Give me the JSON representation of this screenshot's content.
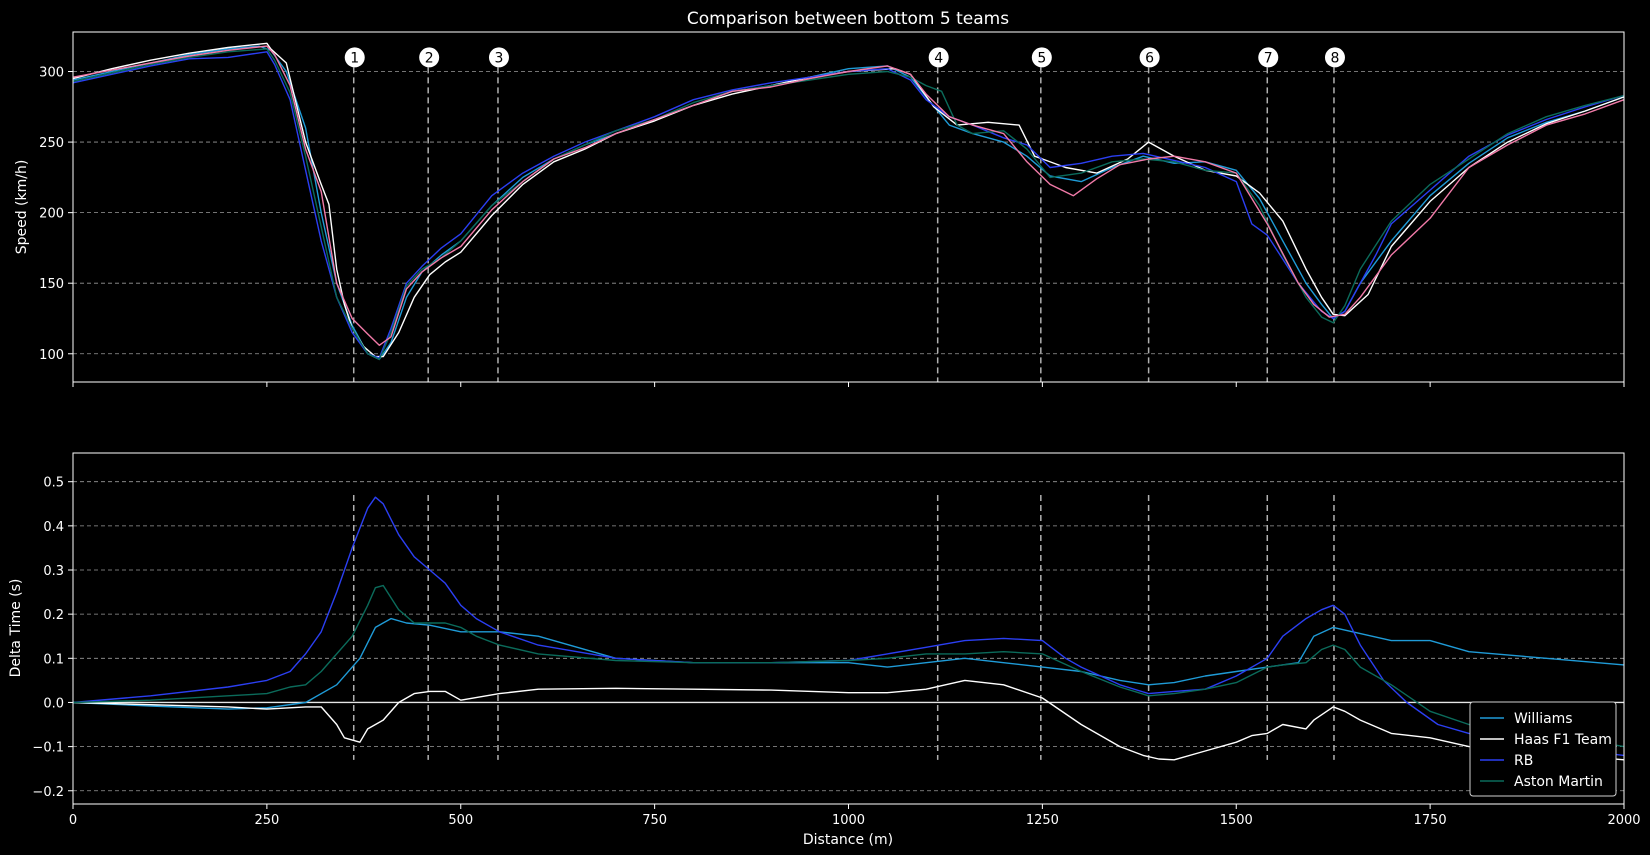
{
  "chart_data": [
    {
      "type": "line",
      "title": "Comparison between bottom 5 teams",
      "xlabel": "",
      "ylabel": "Speed (km/h)",
      "xlim": [
        0,
        2000
      ],
      "ylim": [
        80,
        328
      ],
      "xticks": [
        0,
        250,
        500,
        750,
        1000,
        1250,
        1500,
        1750,
        2000
      ],
      "yticks": [
        100,
        150,
        200,
        250,
        300
      ],
      "grid": "y-dashed",
      "corners": [
        {
          "label": "1",
          "x": 362
        },
        {
          "label": "2",
          "x": 458
        },
        {
          "label": "3",
          "x": 548
        },
        {
          "label": "4",
          "x": 1115
        },
        {
          "label": "5",
          "x": 1248
        },
        {
          "label": "6",
          "x": 1387
        },
        {
          "label": "7",
          "x": 1540
        },
        {
          "label": "8",
          "x": 1626
        }
      ],
      "series": [
        {
          "color": "#1f9bd7",
          "x": [
            0,
            50,
            100,
            150,
            200,
            240,
            255,
            275,
            300,
            320,
            340,
            360,
            380,
            395,
            410,
            430,
            450,
            475,
            500,
            540,
            580,
            620,
            660,
            700,
            750,
            800,
            850,
            900,
            950,
            1000,
            1050,
            1080,
            1100,
            1130,
            1160,
            1200,
            1230,
            1260,
            1300,
            1340,
            1380,
            1420,
            1460,
            1500,
            1530,
            1560,
            1590,
            1610,
            1625,
            1640,
            1660,
            1700,
            1750,
            1800,
            1850,
            1900,
            1950,
            2000
          ],
          "y": [
            294,
            300,
            306,
            312,
            316,
            318,
            315,
            300,
            260,
            200,
            150,
            120,
            100,
            96,
            108,
            140,
            158,
            170,
            180,
            205,
            225,
            238,
            248,
            256,
            266,
            276,
            286,
            290,
            296,
            302,
            304,
            296,
            282,
            262,
            256,
            250,
            240,
            226,
            222,
            232,
            240,
            235,
            236,
            230,
            210,
            180,
            150,
            135,
            125,
            130,
            150,
            180,
            212,
            235,
            253,
            264,
            272,
            282
          ]
        },
        {
          "color": "#ffffff",
          "x": [
            0,
            50,
            100,
            150,
            200,
            250,
            255,
            275,
            300,
            320,
            330,
            340,
            350,
            360,
            375,
            390,
            400,
            420,
            440,
            460,
            480,
            500,
            540,
            580,
            620,
            660,
            700,
            750,
            800,
            850,
            900,
            950,
            1000,
            1060,
            1080,
            1110,
            1140,
            1180,
            1220,
            1240,
            1250,
            1280,
            1320,
            1360,
            1387,
            1420,
            1460,
            1500,
            1530,
            1560,
            1590,
            1610,
            1625,
            1640,
            1670,
            1700,
            1750,
            1800,
            1850,
            1900,
            1950,
            2000
          ],
          "y": [
            295,
            302,
            308,
            313,
            317,
            320,
            316,
            306,
            250,
            220,
            206,
            160,
            135,
            118,
            105,
            98,
            98,
            115,
            140,
            156,
            165,
            172,
            198,
            220,
            236,
            245,
            256,
            265,
            276,
            284,
            290,
            296,
            300,
            302,
            298,
            275,
            262,
            264,
            262,
            240,
            238,
            232,
            228,
            238,
            250,
            240,
            230,
            226,
            214,
            194,
            160,
            140,
            128,
            127,
            142,
            176,
            208,
            232,
            250,
            263,
            272,
            282
          ]
        },
        {
          "color": "#2b3ff2",
          "x": [
            0,
            50,
            100,
            150,
            200,
            250,
            260,
            280,
            300,
            320,
            340,
            360,
            380,
            395,
            410,
            430,
            450,
            475,
            500,
            540,
            580,
            620,
            660,
            700,
            750,
            800,
            850,
            900,
            950,
            1000,
            1050,
            1080,
            1100,
            1130,
            1160,
            1200,
            1230,
            1260,
            1300,
            1340,
            1380,
            1420,
            1460,
            1500,
            1520,
            1540,
            1580,
            1610,
            1625,
            1640,
            1680,
            1700,
            1750,
            1800,
            1850,
            1900,
            1950,
            2000
          ],
          "y": [
            292,
            298,
            304,
            309,
            310,
            314,
            305,
            280,
            230,
            180,
            140,
            115,
            100,
            97,
            118,
            150,
            162,
            175,
            185,
            212,
            228,
            240,
            250,
            258,
            268,
            280,
            287,
            292,
            296,
            300,
            302,
            294,
            280,
            268,
            262,
            253,
            248,
            232,
            235,
            240,
            242,
            237,
            232,
            222,
            192,
            184,
            150,
            130,
            125,
            130,
            170,
            192,
            216,
            240,
            255,
            266,
            275,
            283
          ]
        },
        {
          "color": "#0b6b5b",
          "x": [
            0,
            50,
            100,
            150,
            200,
            250,
            260,
            280,
            300,
            320,
            340,
            360,
            380,
            395,
            410,
            430,
            450,
            475,
            500,
            540,
            580,
            620,
            660,
            700,
            750,
            800,
            850,
            900,
            950,
            1000,
            1050,
            1080,
            1100,
            1120,
            1140,
            1160,
            1200,
            1230,
            1260,
            1300,
            1340,
            1380,
            1420,
            1460,
            1500,
            1530,
            1560,
            1590,
            1610,
            1625,
            1640,
            1660,
            1700,
            1750,
            1800,
            1850,
            1900,
            1950,
            2000
          ],
          "y": [
            293,
            299,
            305,
            310,
            314,
            316,
            308,
            285,
            240,
            190,
            140,
            118,
            100,
            96,
            115,
            148,
            160,
            168,
            180,
            205,
            222,
            238,
            248,
            258,
            266,
            278,
            286,
            290,
            294,
            298,
            300,
            296,
            290,
            286,
            262,
            256,
            258,
            245,
            225,
            228,
            236,
            238,
            236,
            230,
            228,
            205,
            170,
            140,
            126,
            122,
            134,
            160,
            194,
            220,
            238,
            256,
            268,
            276,
            283
          ]
        },
        {
          "color": "#f17aa8",
          "x": [
            0,
            50,
            100,
            150,
            200,
            250,
            260,
            280,
            300,
            320,
            340,
            360,
            380,
            395,
            410,
            430,
            450,
            475,
            500,
            540,
            580,
            620,
            660,
            700,
            750,
            800,
            850,
            900,
            950,
            1000,
            1050,
            1080,
            1100,
            1130,
            1160,
            1200,
            1230,
            1260,
            1290,
            1320,
            1350,
            1387,
            1420,
            1460,
            1500,
            1520,
            1540,
            1580,
            1600,
            1620,
            1640,
            1660,
            1700,
            1750,
            1800,
            1850,
            1900,
            1950,
            2000
          ],
          "y": [
            296,
            301,
            306,
            311,
            315,
            318,
            312,
            290,
            245,
            215,
            150,
            125,
            114,
            106,
            112,
            146,
            158,
            168,
            176,
            202,
            222,
            238,
            246,
            256,
            266,
            276,
            286,
            289,
            295,
            300,
            304,
            298,
            284,
            268,
            262,
            256,
            236,
            220,
            212,
            224,
            234,
            238,
            240,
            236,
            228,
            210,
            192,
            150,
            135,
            126,
            128,
            140,
            170,
            196,
            232,
            248,
            262,
            270,
            280
          ]
        }
      ]
    },
    {
      "type": "line",
      "title": "",
      "xlabel": "Distance (m)",
      "ylabel": "Delta Time (s)",
      "xlim": [
        0,
        2000
      ],
      "ylim": [
        -0.23,
        0.565
      ],
      "xticks": [
        0,
        250,
        500,
        750,
        1000,
        1250,
        1500,
        1750,
        2000
      ],
      "xticklabels": [
        "0",
        "250",
        "500",
        "750",
        "1000",
        "1250",
        "1500",
        "1750",
        "2000"
      ],
      "yticks": [
        -0.2,
        -0.1,
        0.0,
        0.1,
        0.2,
        0.3,
        0.4,
        0.5
      ],
      "yticklabels": [
        "−0.2",
        "−0.1",
        "0.0",
        "0.1",
        "0.2",
        "0.3",
        "0.4",
        "0.5"
      ],
      "grid": "y-dashed",
      "legend_position": "bottom-right",
      "corners": [
        362,
        458,
        548,
        1115,
        1248,
        1387,
        1540,
        1626
      ],
      "series": [
        {
          "name": "Williams",
          "color": "#1f9bd7",
          "x": [
            0,
            100,
            200,
            250,
            300,
            340,
            370,
            390,
            410,
            430,
            460,
            500,
            550,
            600,
            700,
            800,
            900,
            1000,
            1050,
            1100,
            1150,
            1200,
            1250,
            1300,
            1350,
            1387,
            1420,
            1460,
            1500,
            1540,
            1580,
            1600,
            1625,
            1650,
            1700,
            1750,
            1800,
            1900,
            2000
          ],
          "y": [
            0,
            -0.008,
            -0.015,
            -0.012,
            0.0,
            0.04,
            0.1,
            0.17,
            0.19,
            0.18,
            0.175,
            0.16,
            0.16,
            0.15,
            0.1,
            0.09,
            0.09,
            0.09,
            0.08,
            0.09,
            0.1,
            0.09,
            0.08,
            0.07,
            0.05,
            0.04,
            0.045,
            0.06,
            0.07,
            0.08,
            0.09,
            0.15,
            0.17,
            0.16,
            0.14,
            0.14,
            0.115,
            0.1,
            0.085
          ]
        },
        {
          "name": "Haas F1 Team",
          "color": "#ffffff",
          "x": [
            0,
            100,
            200,
            250,
            300,
            320,
            340,
            350,
            370,
            380,
            400,
            420,
            440,
            460,
            480,
            500,
            550,
            600,
            700,
            800,
            900,
            1000,
            1050,
            1100,
            1150,
            1200,
            1250,
            1300,
            1350,
            1380,
            1400,
            1420,
            1460,
            1500,
            1520,
            1540,
            1560,
            1590,
            1600,
            1625,
            1640,
            1660,
            1700,
            1750,
            1800,
            1900,
            2000
          ],
          "y": [
            0,
            -0.005,
            -0.01,
            -0.015,
            -0.01,
            -0.01,
            -0.05,
            -0.08,
            -0.09,
            -0.06,
            -0.04,
            0.0,
            0.02,
            0.025,
            0.025,
            0.005,
            0.02,
            0.03,
            0.032,
            0.03,
            0.028,
            0.022,
            0.022,
            0.03,
            0.05,
            0.04,
            0.01,
            -0.05,
            -0.1,
            -0.12,
            -0.128,
            -0.13,
            -0.11,
            -0.09,
            -0.075,
            -0.07,
            -0.05,
            -0.06,
            -0.04,
            -0.01,
            -0.02,
            -0.04,
            -0.07,
            -0.08,
            -0.1,
            -0.115,
            -0.13
          ]
        },
        {
          "name": "RB",
          "color": "#2b3ff2",
          "x": [
            0,
            100,
            200,
            250,
            280,
            300,
            320,
            340,
            360,
            380,
            390,
            400,
            420,
            440,
            460,
            480,
            500,
            520,
            550,
            600,
            700,
            800,
            900,
            1000,
            1050,
            1100,
            1150,
            1200,
            1250,
            1280,
            1300,
            1350,
            1387,
            1420,
            1460,
            1500,
            1540,
            1560,
            1590,
            1610,
            1625,
            1640,
            1660,
            1690,
            1720,
            1760,
            1800,
            1900,
            2000
          ],
          "y": [
            0,
            0.015,
            0.035,
            0.05,
            0.07,
            0.11,
            0.16,
            0.25,
            0.35,
            0.44,
            0.465,
            0.45,
            0.38,
            0.33,
            0.3,
            0.27,
            0.22,
            0.19,
            0.16,
            0.13,
            0.1,
            0.09,
            0.09,
            0.095,
            0.11,
            0.125,
            0.14,
            0.145,
            0.14,
            0.1,
            0.08,
            0.04,
            0.02,
            0.025,
            0.03,
            0.06,
            0.1,
            0.15,
            0.19,
            0.21,
            0.22,
            0.2,
            0.13,
            0.05,
            0.0,
            -0.05,
            -0.07,
            -0.1,
            -0.12
          ]
        },
        {
          "name": "Aston Martin",
          "color": "#0b6b5b",
          "x": [
            0,
            100,
            200,
            250,
            280,
            300,
            320,
            340,
            360,
            380,
            390,
            400,
            420,
            440,
            460,
            480,
            500,
            520,
            550,
            600,
            700,
            800,
            900,
            1000,
            1050,
            1100,
            1150,
            1200,
            1250,
            1300,
            1350,
            1387,
            1420,
            1460,
            1500,
            1540,
            1560,
            1590,
            1610,
            1625,
            1640,
            1660,
            1700,
            1750,
            1800,
            1900,
            2000
          ],
          "y": [
            0,
            0.005,
            0.015,
            0.02,
            0.035,
            0.04,
            0.07,
            0.11,
            0.15,
            0.22,
            0.26,
            0.265,
            0.21,
            0.18,
            0.18,
            0.18,
            0.17,
            0.15,
            0.13,
            0.11,
            0.095,
            0.09,
            0.09,
            0.095,
            0.1,
            0.11,
            0.11,
            0.115,
            0.11,
            0.07,
            0.035,
            0.015,
            0.02,
            0.03,
            0.045,
            0.08,
            0.085,
            0.09,
            0.12,
            0.13,
            0.12,
            0.08,
            0.04,
            -0.02,
            -0.05,
            -0.07,
            -0.1
          ]
        }
      ]
    }
  ]
}
